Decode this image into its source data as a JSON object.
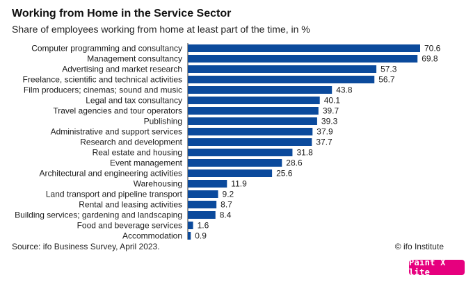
{
  "chart_data": {
    "type": "bar",
    "orientation": "horizontal",
    "title": "Working from Home in the Service Sector",
    "subtitle": "Share of employees working from home at least part of the time, in %",
    "categories": [
      "Computer programming and consultancy",
      "Management consultancy",
      "Advertising and market research",
      "Freelance, scientific and technical activities",
      "Film producers; cinemas; sound and music",
      "Legal and tax consultancy",
      "Travel agencies and tour operators",
      "Publishing",
      "Administrative and support services",
      "Research and development",
      "Real estate and housing",
      "Event management",
      "Architectural and engineering activities",
      "Warehousing",
      "Land transport and pipeline transport",
      "Rental and leasing activities",
      "Building services; gardening and landscaping",
      "Food and beverage services",
      "Accommodation"
    ],
    "values": [
      70.6,
      69.8,
      57.3,
      56.7,
      43.8,
      40.1,
      39.7,
      39.3,
      37.9,
      37.7,
      31.8,
      28.6,
      25.6,
      11.9,
      9.2,
      8.7,
      8.4,
      1.6,
      0.9
    ],
    "value_labels": [
      "70.6",
      "69.8",
      "57.3",
      "56.7",
      "43.8",
      "40.1",
      "39.7",
      "39.3",
      "37.9",
      "37.7",
      "31.8",
      "28.6",
      "25.6",
      "11.9",
      "9.2",
      "8.7",
      "8.4",
      "1.6",
      "0.9"
    ],
    "xlim": [
      0,
      70.6
    ],
    "grid": false,
    "bar_color": "#0b4a9c"
  },
  "footer": {
    "source": "Source: ifo Business Survey, April 2023.",
    "credit": "© ifo Institute"
  },
  "badge": {
    "label": "Paint X lite",
    "color": "#e6007e"
  }
}
